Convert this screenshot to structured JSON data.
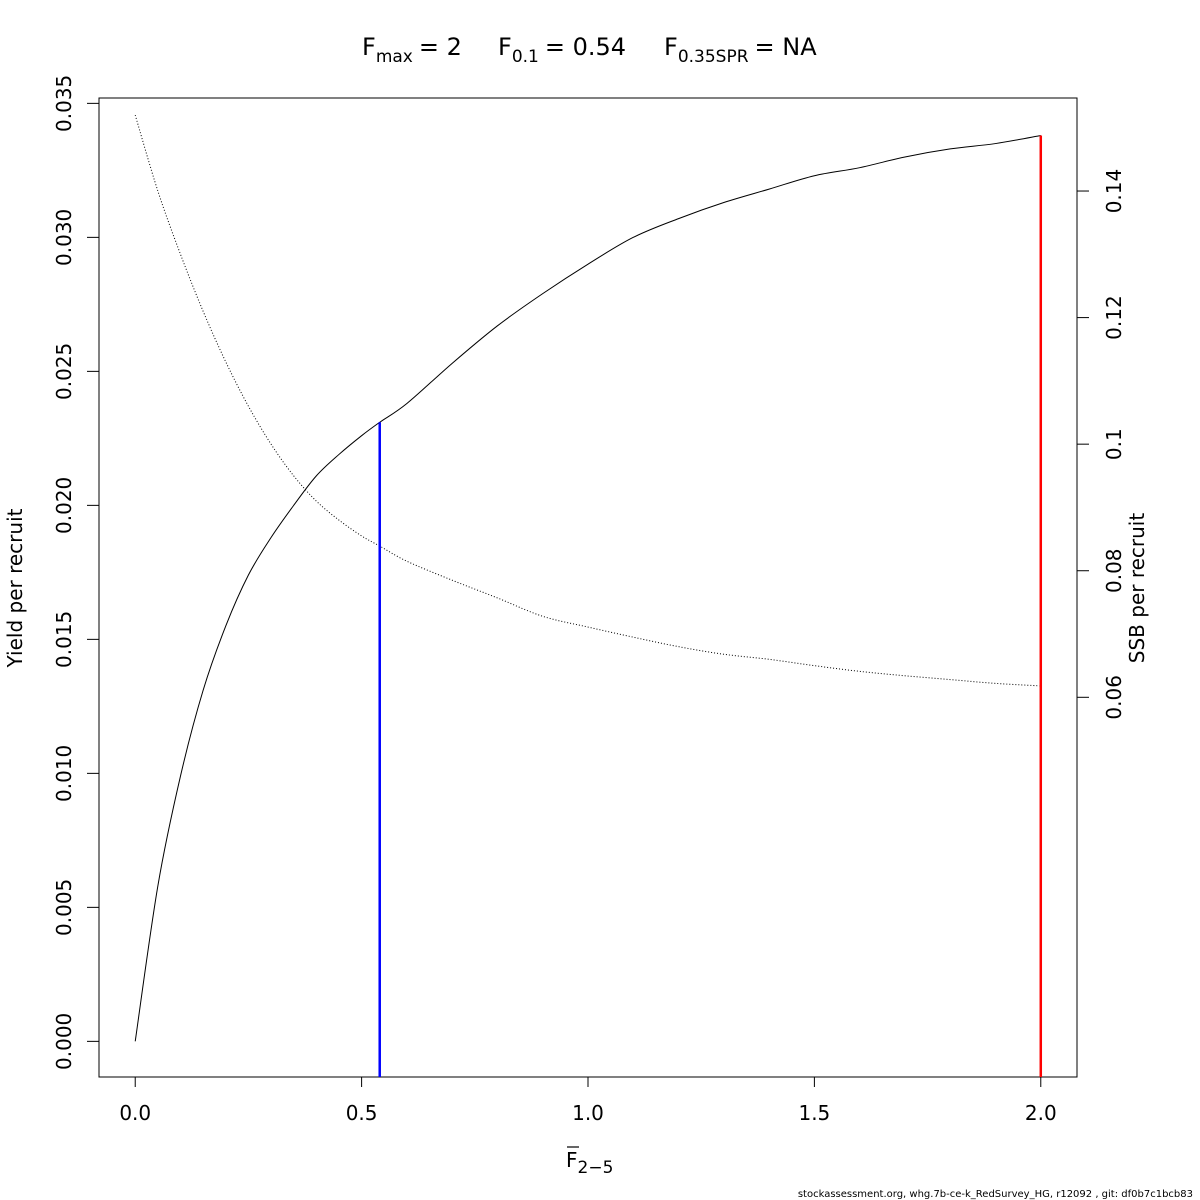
{
  "chart_data": {
    "type": "line",
    "title": {
      "fmax": {
        "base": "F",
        "sub": "max",
        "value": "= 2"
      },
      "f01": {
        "base": "F",
        "sub": "0.1",
        "value": "= 0.54"
      },
      "fspr": {
        "base": "F",
        "sub": "0.35SPR",
        "value": "= NA"
      }
    },
    "xlabel": {
      "base": "F",
      "sub": "2−5"
    },
    "ylabel_left": "Yield per recruit",
    "ylabel_right": "SSB per recruit",
    "xlim": [
      -0.08,
      2.08
    ],
    "ylim_left": [
      -0.00133,
      0.0352
    ],
    "ylim_right": [
      0.0,
      0.1547
    ],
    "x_ticks": [
      "0.0",
      "0.5",
      "1.0",
      "1.5",
      "2.0"
    ],
    "y_left_ticks": [
      "0.000",
      "0.005",
      "0.010",
      "0.015",
      "0.020",
      "0.025",
      "0.030",
      "0.035"
    ],
    "y_right_ticks": [
      "0.06",
      "0.08",
      "0.1",
      "0.12",
      "0.14"
    ],
    "series": [
      {
        "name": "",
        "axis": "left",
        "style": "solid",
        "color": "#000000",
        "x": [
          0.0,
          0.05,
          0.1,
          0.15,
          0.2,
          0.25,
          0.3,
          0.35,
          0.4,
          0.45,
          0.5,
          0.54,
          0.6,
          0.7,
          0.8,
          0.9,
          1.0,
          1.1,
          1.2,
          1.3,
          1.4,
          1.5,
          1.6,
          1.7,
          1.8,
          1.9,
          2.0
        ],
        "y": [
          0.0,
          0.0058,
          0.0099,
          0.0131,
          0.0155,
          0.0174,
          0.0188,
          0.02,
          0.0211,
          0.0219,
          0.0226,
          0.0231,
          0.0238,
          0.0253,
          0.0267,
          0.0279,
          0.029,
          0.03,
          0.0307,
          0.0313,
          0.0318,
          0.0323,
          0.0326,
          0.033,
          0.0333,
          0.0335,
          0.0338
        ]
      },
      {
        "name": "",
        "axis": "right",
        "style": "dotted",
        "color": "#000000",
        "x": [
          0.0,
          0.05,
          0.1,
          0.15,
          0.2,
          0.25,
          0.3,
          0.35,
          0.4,
          0.45,
          0.5,
          0.54,
          0.6,
          0.7,
          0.8,
          0.9,
          1.0,
          1.1,
          1.2,
          1.3,
          1.4,
          1.5,
          1.6,
          1.7,
          1.8,
          1.9,
          2.0
        ],
        "y": [
          0.152,
          0.14,
          0.13,
          0.121,
          0.113,
          0.106,
          0.1,
          0.095,
          0.091,
          0.088,
          0.0855,
          0.0839,
          0.0815,
          0.0785,
          0.0757,
          0.0728,
          0.0711,
          0.0695,
          0.068,
          0.0668,
          0.066,
          0.065,
          0.0641,
          0.0634,
          0.0628,
          0.0622,
          0.0618
        ]
      }
    ],
    "reference_lines": [
      {
        "name": "F0.1",
        "x": 0.54,
        "y_top": 0.0231,
        "color": "#0000ff"
      },
      {
        "name": "Fmax",
        "x": 2.0,
        "y_top": 0.0338,
        "color": "#ff0000"
      }
    ],
    "grid": false,
    "legend": "none"
  },
  "footer": "stockassessment.org, whg.7b-ce-k_RedSurvey_HG, r12092 , git: df0b7c1bcb83"
}
